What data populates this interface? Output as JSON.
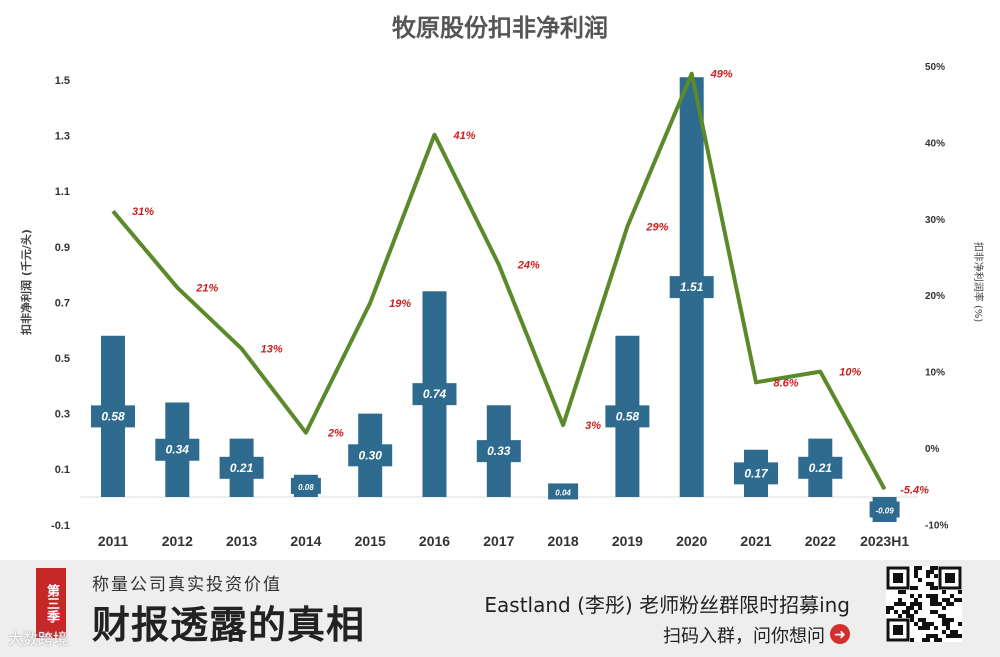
{
  "chart_data": {
    "type": "bar",
    "title": "牧原股份扣非净利润",
    "categories": [
      "2011",
      "2012",
      "2013",
      "2014",
      "2015",
      "2016",
      "2017",
      "2018",
      "2019",
      "2020",
      "2021",
      "2022",
      "2023H1"
    ],
    "series": [
      {
        "values": [
          0.58,
          0.34,
          0.21,
          0.08,
          0.3,
          0.74,
          0.33,
          0.04,
          0.58,
          1.51,
          0.17,
          0.21,
          -0.09
        ],
        "labels": [
          "0.58",
          "0.34",
          "0.21",
          "0.08",
          "0.30",
          "0.74",
          "0.33",
          "0.04",
          "0.58",
          "1.51",
          "0.17",
          "0.21",
          "-0.09"
        ],
        "color": "#2e6b8e"
      },
      {
        "type": "line",
        "axis": "right",
        "values": [
          31,
          21,
          13,
          2,
          19,
          41,
          24,
          3,
          29,
          49,
          8.6,
          10,
          -5.4
        ],
        "labels": [
          "31%",
          "21%",
          "13%",
          "2%",
          "19%",
          "41%",
          "24%",
          "3%",
          "29%",
          "49%",
          "8.6%",
          "10%",
          "-5.4%"
        ],
        "color": "#5a8a2a"
      }
    ],
    "ylabel": "扣非净利润 (千元/头)",
    "y2label": "扣非净利润率 (%)",
    "ylim": [
      -0.1,
      1.5
    ],
    "y2lim": [
      -10,
      50
    ],
    "yticks": [
      "-0.1",
      "0.1",
      "0.3",
      "0.5",
      "0.7",
      "0.9",
      "1.1",
      "1.3",
      "1.5"
    ],
    "y2ticks": [
      "-10%",
      "0%",
      "10%",
      "20%",
      "30%",
      "40%",
      "50%"
    ],
    "grid": false,
    "legend": "none"
  },
  "banner": {
    "badge": "第三季",
    "subtitle": "称量公司真实投资价值",
    "headline": "财报透露的真相",
    "recruit": "Eastland (李彤) 老师粉丝群限时招募ing",
    "scan": "扫码入群，问你想问",
    "watermark": "大数跨境",
    "arrow_icon": "➜"
  }
}
